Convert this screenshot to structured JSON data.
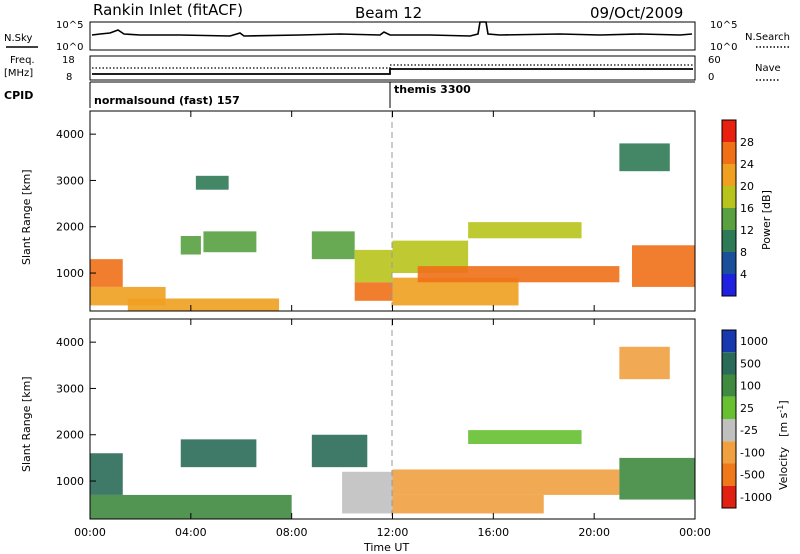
{
  "header": {
    "station": "Rankin Inlet (fitACF)",
    "beam": "Beam 12",
    "date": "09/Oct/2009"
  },
  "nsky_panel": {
    "left_label": "N.Sky",
    "right_label": "N.Search",
    "left_ticks": [
      "10^5",
      "10^0"
    ],
    "right_ticks": [
      "10^5",
      "10^0"
    ]
  },
  "freq_panel": {
    "left_label_1": "Freq.",
    "left_label_2": "[MHz]",
    "right_label": "Nave",
    "left_ticks": [
      "18",
      "8"
    ],
    "right_ticks": [
      "60",
      "0"
    ]
  },
  "cpid_panel": {
    "label": "CPID",
    "modes": [
      {
        "name": "normalsound (fast) 157",
        "start_hour": 0
      },
      {
        "name": "themis 3300",
        "start_hour": 12
      }
    ]
  },
  "power_panel": {
    "ylabel": "Slant Range [km]",
    "yticks": [
      "1000",
      "2000",
      "3000",
      "4000"
    ],
    "colorbar_label": "Power [dB]",
    "colorbar_ticks": [
      "4",
      "8",
      "12",
      "16",
      "20",
      "24",
      "28"
    ]
  },
  "velocity_panel": {
    "ylabel": "Slant Range [km]",
    "yticks": [
      "1000",
      "2000",
      "3000",
      "4000"
    ],
    "colorbar_ticks": [
      "1000",
      "500",
      "100",
      "25",
      "-25",
      "-100",
      "-500",
      "-1000"
    ],
    "colorbar_label_main": "Velocity",
    "colorbar_label_unit": "[m s",
    "colorbar_label_sup": "-1",
    "colorbar_label_end": "]"
  },
  "xaxis": {
    "label": "Time UT",
    "ticks": [
      "00:00",
      "04:00",
      "08:00",
      "12:00",
      "16:00",
      "20:00",
      "00:00"
    ]
  },
  "colors": {
    "power_scale": [
      "#2020e0",
      "#1a4f9a",
      "#2f7a56",
      "#58a040",
      "#b8c41c",
      "#f0a020",
      "#f07018",
      "#e82010"
    ],
    "velocity_scale": [
      "#1838b0",
      "#2a6a58",
      "#3f8a3f",
      "#66c030",
      "#c0c0c0",
      "#f0a040",
      "#f07818",
      "#e02010"
    ]
  },
  "chart_data": [
    {
      "type": "heatmap",
      "title": "Power",
      "x_range_hours": [
        0,
        24
      ],
      "y_range_km": [
        180,
        4500
      ],
      "colorbar_range_db": [
        0,
        32
      ],
      "echo_regions": [
        {
          "t": [
            0.0,
            1.3
          ],
          "r": [
            700,
            1300
          ],
          "v": 24
        },
        {
          "t": [
            0.0,
            3.0
          ],
          "r": [
            300,
            700
          ],
          "v": 20
        },
        {
          "t": [
            1.5,
            7.5
          ],
          "r": [
            180,
            450
          ],
          "v": 22
        },
        {
          "t": [
            3.6,
            4.4
          ],
          "r": [
            1400,
            1800
          ],
          "v": 14
        },
        {
          "t": [
            4.5,
            6.6
          ],
          "r": [
            1450,
            1900
          ],
          "v": 12
        },
        {
          "t": [
            4.2,
            5.5
          ],
          "r": [
            2800,
            3100
          ],
          "v": 8
        },
        {
          "t": [
            8.8,
            10.5
          ],
          "r": [
            1300,
            1900
          ],
          "v": 14
        },
        {
          "t": [
            10.5,
            12.0
          ],
          "r": [
            800,
            1500
          ],
          "v": 18
        },
        {
          "t": [
            10.5,
            12.0
          ],
          "r": [
            400,
            800
          ],
          "v": 26
        },
        {
          "t": [
            12.0,
            15.0
          ],
          "r": [
            1000,
            1700
          ],
          "v": 16
        },
        {
          "t": [
            12.0,
            17.0
          ],
          "r": [
            300,
            900
          ],
          "v": 22
        },
        {
          "t": [
            13.0,
            21.0
          ],
          "r": [
            800,
            1150
          ],
          "v": 26
        },
        {
          "t": [
            15.0,
            19.5
          ],
          "r": [
            1750,
            2100
          ],
          "v": 18
        },
        {
          "t": [
            21.5,
            24.0
          ],
          "r": [
            700,
            1600
          ],
          "v": 24
        },
        {
          "t": [
            21.0,
            23.0
          ],
          "r": [
            3200,
            3800
          ],
          "v": 10
        }
      ]
    },
    {
      "type": "heatmap",
      "title": "Velocity",
      "x_range_hours": [
        0,
        24
      ],
      "y_range_km": [
        180,
        4500
      ],
      "colorbar_range_ms": [
        -1000,
        1000
      ],
      "echo_regions": [
        {
          "t": [
            0.0,
            1.3
          ],
          "r": [
            700,
            1600
          ],
          "v": 120
        },
        {
          "t": [
            0.0,
            8.0
          ],
          "r": [
            180,
            700
          ],
          "v": 80
        },
        {
          "t": [
            3.6,
            6.6
          ],
          "r": [
            1300,
            1900
          ],
          "v": 300
        },
        {
          "t": [
            8.8,
            11.0
          ],
          "r": [
            1300,
            2000
          ],
          "v": 250
        },
        {
          "t": [
            10.0,
            12.0
          ],
          "r": [
            300,
            1200
          ],
          "v": -80
        },
        {
          "t": [
            12.0,
            21.0
          ],
          "r": [
            700,
            1250
          ],
          "v": -150
        },
        {
          "t": [
            12.0,
            18.0
          ],
          "r": [
            300,
            700
          ],
          "v": -400
        },
        {
          "t": [
            15.0,
            19.5
          ],
          "r": [
            1800,
            2100
          ],
          "v": 0
        },
        {
          "t": [
            21.0,
            24.0
          ],
          "r": [
            600,
            1500
          ],
          "v": 80
        },
        {
          "t": [
            21.0,
            23.0
          ],
          "r": [
            3200,
            3900
          ],
          "v": -200
        }
      ]
    }
  ]
}
